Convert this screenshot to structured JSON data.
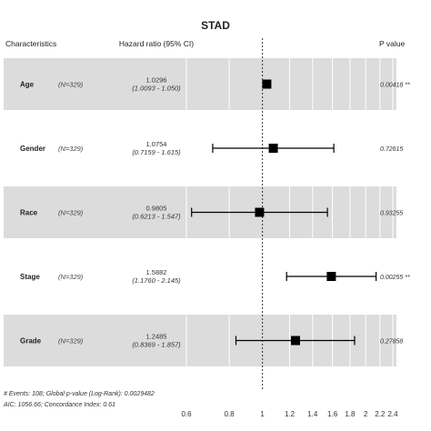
{
  "chart_data": {
    "type": "forest",
    "title": "STAD",
    "headers": {
      "characteristics": "Characteristics",
      "hazard_ratio": "Hazard ratio (95% CI)",
      "p_value": "P value"
    },
    "rows": [
      {
        "label": "Age",
        "n": "(N=329)",
        "hr_text": "1.0296",
        "ci_text": "(1.0093 - 1.050)",
        "hr": 1.0296,
        "lo": 1.0093,
        "hi": 1.05,
        "p_text": "0.00418 **",
        "shaded": true
      },
      {
        "label": "Gender",
        "n": "(N=329)",
        "hr_text": "1.0754",
        "ci_text": "(0.7159 - 1.615)",
        "hr": 1.0754,
        "lo": 0.7159,
        "hi": 1.615,
        "p_text": "0.72615",
        "shaded": false
      },
      {
        "label": "Race",
        "n": "(N=329)",
        "hr_text": "0.9805",
        "ci_text": "(0.6213 - 1.547)",
        "hr": 0.9805,
        "lo": 0.6213,
        "hi": 1.547,
        "p_text": "0.93255",
        "shaded": true
      },
      {
        "label": "Stage",
        "n": "(N=329)",
        "hr_text": "1.5882",
        "ci_text": "(1.1760 - 2.145)",
        "hr": 1.5882,
        "lo": 1.176,
        "hi": 2.145,
        "p_text": "0.00255 **",
        "shaded": false
      },
      {
        "label": "Grade",
        "n": "(N=329)",
        "hr_text": "1.2485",
        "ci_text": "(0.8369 - 1.857)",
        "hr": 1.2485,
        "lo": 0.8369,
        "hi": 1.857,
        "p_text": "0.27858",
        "shaded": true
      }
    ],
    "x_ticks": [
      0.6,
      0.8,
      1,
      1.2,
      1.4,
      1.6,
      1.8,
      2,
      2.2,
      2.4
    ],
    "x_tick_labels": [
      "0.6",
      "0.8",
      "1",
      "1.2",
      "1.4",
      "1.6",
      "1.8",
      "2",
      "2.2",
      "2.4"
    ],
    "xlim": [
      0.6,
      2.4
    ],
    "reference_line": 1,
    "footer": [
      "# Events: 108; Global p-value (Log-Rank): 0.0029482",
      "AIC: 1056.66; Concordance Index: 0.61"
    ],
    "colors": {
      "band": "#dcdcdc",
      "marker": "#000000",
      "ci_line": "#000000",
      "text": "#222222"
    }
  }
}
